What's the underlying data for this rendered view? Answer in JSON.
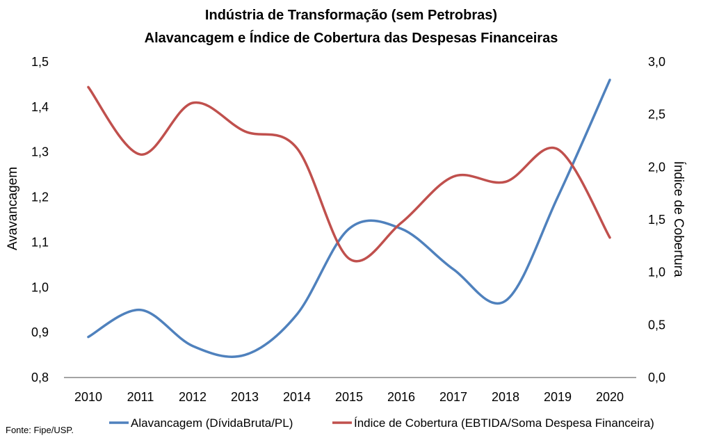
{
  "chart_data": {
    "type": "line",
    "title": "Indústria de Transformação (sem Petrobras)",
    "subtitle": "Alavancagem e Índice de Cobertura das Despesas Financeiras",
    "categories": [
      "2010",
      "2011",
      "2012",
      "2013",
      "2014",
      "2015",
      "2016",
      "2017",
      "2018",
      "2019",
      "2020"
    ],
    "ylabel": "Avavancagem",
    "y2label": "Índice de Cobertura",
    "ylim": [
      0.8,
      1.5
    ],
    "y2lim": [
      0.0,
      3.0
    ],
    "yticks": [
      "0,8",
      "0,9",
      "1,0",
      "1,1",
      "1,2",
      "1,3",
      "1,4",
      "1,5"
    ],
    "y2ticks": [
      "0,0",
      "0,5",
      "1,0",
      "1,5",
      "2,0",
      "2,5",
      "3,0"
    ],
    "grid": false,
    "legend_position": "bottom",
    "series": [
      {
        "name": "Alavancagem (DívidaBruta/PL)",
        "axis": "left",
        "color": "#4F81BD",
        "values": [
          0.89,
          0.95,
          0.87,
          0.85,
          0.94,
          1.13,
          1.13,
          1.04,
          0.97,
          1.2,
          1.46
        ]
      },
      {
        "name": "Índice de Cobertura (EBTIDA/Soma Despesa Financeira)",
        "axis": "right",
        "color": "#C0504D",
        "values": [
          2.76,
          2.12,
          2.61,
          2.34,
          2.18,
          1.13,
          1.47,
          1.91,
          1.86,
          2.17,
          1.33
        ]
      }
    ]
  },
  "source_note": "Fonte: Fipe/USP."
}
